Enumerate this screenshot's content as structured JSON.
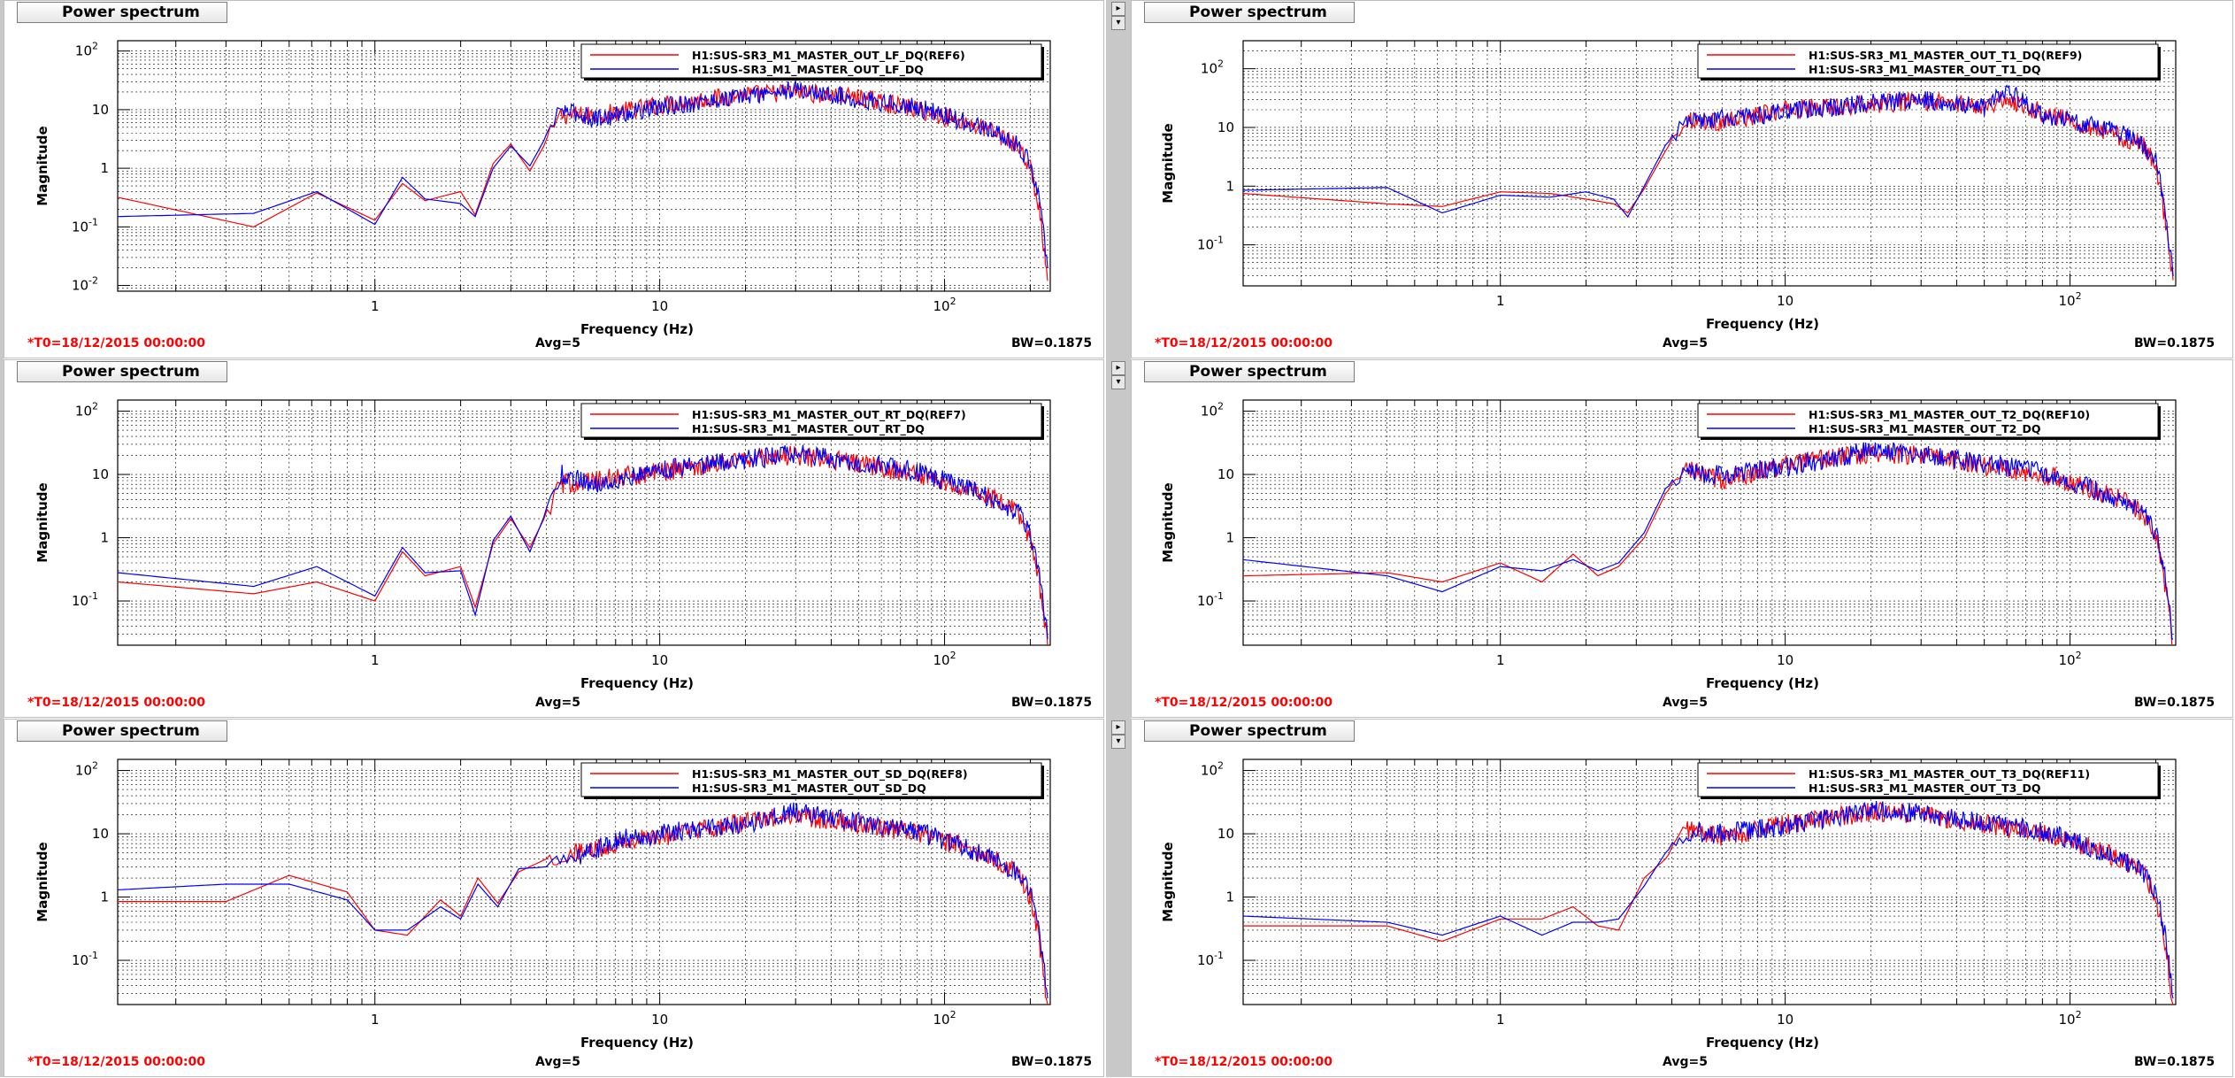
{
  "panels": [
    {
      "title": "Power spectrum",
      "ylabel": "Magnitude",
      "xlabel": "Frequency (Hz)",
      "ymin_exp": -2,
      "ymax_exp": 2,
      "yticks": [
        {
          "mant": "10",
          "exp": "2",
          "v": 100
        },
        {
          "mant": "10",
          "exp": "",
          "v": 10
        },
        {
          "mant": "1",
          "exp": "",
          "v": 1
        },
        {
          "mant": "10",
          "exp": "-1",
          "v": 0.1
        },
        {
          "mant": "10",
          "exp": "-2",
          "v": 0.01
        }
      ],
      "legend": [
        "H1:SUS-SR3_M1_MASTER_OUT_LF_DQ(REF6)",
        "H1:SUS-SR3_M1_MASTER_OUT_LF_DQ"
      ],
      "footer": {
        "t0": "*T0=18/12/2015 00:00:00",
        "avg": "Avg=5",
        "bw": "BW=0.1875"
      },
      "chart_data": {
        "type": "line",
        "xlim": [
          0.125,
          235
        ],
        "ylim": [
          0.008,
          150
        ],
        "series": [
          {
            "name": "H1:SUS-SR3_M1_MASTER_OUT_LF_DQ(REF6)",
            "color": "#ff0000",
            "x": [
              0.125,
              0.375,
              0.625,
              1.0,
              1.25,
              1.5,
              2.0,
              2.25,
              2.6,
              3.0,
              3.5,
              4.5,
              6,
              10,
              20,
              30,
              50,
              80,
              120,
              150,
              180,
              200,
              215,
              230
            ],
            "y": [
              0.32,
              0.1,
              0.38,
              0.13,
              0.55,
              0.28,
              0.4,
              0.16,
              1.2,
              2.6,
              0.9,
              8,
              8,
              12,
              18,
              20,
              16,
              10,
              6,
              4,
              2.5,
              1.0,
              0.2,
              0.012
            ]
          },
          {
            "name": "H1:SUS-SR3_M1_MASTER_OUT_LF_DQ",
            "color": "#0000ff",
            "x": [
              0.125,
              0.375,
              0.625,
              1.0,
              1.25,
              1.5,
              2.0,
              2.25,
              2.6,
              3.0,
              3.5,
              4.5,
              6,
              10,
              20,
              30,
              50,
              80,
              120,
              150,
              180,
              200,
              215,
              230
            ],
            "y": [
              0.15,
              0.17,
              0.4,
              0.11,
              0.7,
              0.3,
              0.25,
              0.15,
              1.0,
              2.4,
              1.1,
              10,
              7,
              11,
              17,
              22,
              15,
              11,
              6,
              4,
              2.5,
              1.2,
              0.3,
              0.02
            ]
          }
        ]
      }
    },
    {
      "title": "Power spectrum",
      "ylabel": "Magnitude",
      "xlabel": "Frequency (Hz)",
      "yticks": [
        {
          "mant": "10",
          "exp": "2",
          "v": 100
        },
        {
          "mant": "10",
          "exp": "",
          "v": 10
        },
        {
          "mant": "1",
          "exp": "",
          "v": 1
        },
        {
          "mant": "10",
          "exp": "-1",
          "v": 0.1
        }
      ],
      "legend": [
        "H1:SUS-SR3_M1_MASTER_OUT_T1_DQ(REF9)",
        "H1:SUS-SR3_M1_MASTER_OUT_T1_DQ"
      ],
      "footer": {
        "t0": "*T0=18/12/2015 00:00:00",
        "avg": "Avg=5",
        "bw": "BW=0.1875"
      },
      "chart_data": {
        "type": "line",
        "xlim": [
          0.125,
          235
        ],
        "ylim": [
          0.02,
          300
        ],
        "series": [
          {
            "name": "H1:SUS-SR3_M1_MASTER_OUT_T1_DQ(REF9)",
            "color": "#ff0000",
            "x": [
              0.125,
              0.4,
              0.625,
              1.0,
              1.5,
              2.0,
              2.5,
              2.8,
              3.2,
              3.8,
              4.5,
              6,
              10,
              20,
              30,
              50,
              60,
              80,
              120,
              150,
              180,
              200,
              215,
              230
            ],
            "y": [
              0.75,
              0.5,
              0.45,
              0.8,
              0.75,
              0.6,
              0.5,
              0.35,
              0.9,
              4,
              14,
              12,
              20,
              25,
              28,
              24,
              30,
              18,
              10,
              7,
              5,
              2.5,
              0.3,
              0.025
            ]
          },
          {
            "name": "H1:SUS-SR3_M1_MASTER_OUT_T1_DQ",
            "color": "#0000ff",
            "x": [
              0.125,
              0.4,
              0.625,
              1.0,
              1.5,
              2.0,
              2.5,
              2.8,
              3.2,
              3.8,
              4.5,
              6,
              10,
              20,
              30,
              50,
              60,
              80,
              120,
              150,
              180,
              200,
              215,
              230
            ],
            "y": [
              0.85,
              0.95,
              0.35,
              0.7,
              0.65,
              0.8,
              0.6,
              0.3,
              1.0,
              5,
              12,
              14,
              18,
              26,
              30,
              22,
              45,
              16,
              11,
              8,
              5,
              3,
              0.4,
              0.03
            ]
          }
        ]
      }
    },
    {
      "title": "Power spectrum",
      "ylabel": "Magnitude",
      "xlabel": "Frequency (Hz)",
      "yticks": [
        {
          "mant": "10",
          "exp": "2",
          "v": 100
        },
        {
          "mant": "10",
          "exp": "",
          "v": 10
        },
        {
          "mant": "1",
          "exp": "",
          "v": 1
        },
        {
          "mant": "10",
          "exp": "-1",
          "v": 0.1
        }
      ],
      "legend": [
        "H1:SUS-SR3_M1_MASTER_OUT_RT_DQ(REF7)",
        "H1:SUS-SR3_M1_MASTER_OUT_RT_DQ"
      ],
      "footer": {
        "t0": "*T0=18/12/2015 00:00:00",
        "avg": "Avg=5",
        "bw": "BW=0.1875"
      },
      "chart_data": {
        "type": "line",
        "xlim": [
          0.125,
          235
        ],
        "ylim": [
          0.02,
          150
        ],
        "series": [
          {
            "name": "H1:SUS-SR3_M1_MASTER_OUT_RT_DQ(REF7)",
            "color": "#ff0000",
            "x": [
              0.125,
              0.375,
              0.625,
              1.0,
              1.25,
              1.5,
              2.0,
              2.25,
              2.6,
              3.0,
              3.5,
              4.5,
              6,
              10,
              20,
              30,
              50,
              80,
              120,
              150,
              180,
              200,
              215,
              230
            ],
            "y": [
              0.2,
              0.13,
              0.2,
              0.1,
              0.6,
              0.25,
              0.35,
              0.08,
              0.8,
              2.0,
              0.7,
              7,
              8,
              11,
              18,
              20,
              15,
              10,
              6,
              4,
              2.5,
              1.0,
              0.2,
              0.02
            ]
          },
          {
            "name": "H1:SUS-SR3_M1_MASTER_OUT_RT_DQ",
            "color": "#0000ff",
            "x": [
              0.125,
              0.375,
              0.625,
              1.0,
              1.25,
              1.5,
              2.0,
              2.25,
              2.6,
              3.0,
              3.5,
              4.5,
              6,
              10,
              20,
              30,
              50,
              80,
              120,
              150,
              180,
              200,
              215,
              230
            ],
            "y": [
              0.28,
              0.17,
              0.35,
              0.12,
              0.7,
              0.28,
              0.3,
              0.06,
              0.9,
              2.2,
              0.6,
              10,
              7,
              12,
              17,
              21,
              16,
              11,
              6,
              4,
              2.5,
              1.2,
              0.3,
              0.025
            ]
          }
        ]
      }
    },
    {
      "title": "Power spectrum",
      "ylabel": "Magnitude",
      "xlabel": "Frequency (Hz)",
      "yticks": [
        {
          "mant": "10",
          "exp": "2",
          "v": 100
        },
        {
          "mant": "10",
          "exp": "",
          "v": 10
        },
        {
          "mant": "1",
          "exp": "",
          "v": 1
        },
        {
          "mant": "10",
          "exp": "-1",
          "v": 0.1
        }
      ],
      "legend": [
        "H1:SUS-SR3_M1_MASTER_OUT_T2_DQ(REF10)",
        "H1:SUS-SR3_M1_MASTER_OUT_T2_DQ"
      ],
      "footer": {
        "t0": "*T0=18/12/2015 00:00:00",
        "avg": "Avg=5",
        "bw": "BW=0.1875"
      },
      "chart_data": {
        "type": "line",
        "xlim": [
          0.125,
          235
        ],
        "ylim": [
          0.02,
          150
        ],
        "series": [
          {
            "name": "H1:SUS-SR3_M1_MASTER_OUT_T2_DQ(REF10)",
            "color": "#ff0000",
            "x": [
              0.125,
              0.4,
              0.625,
              1.0,
              1.4,
              1.8,
              2.2,
              2.6,
              3.2,
              3.8,
              4.5,
              6,
              10,
              20,
              30,
              50,
              80,
              120,
              150,
              180,
              200,
              215,
              230
            ],
            "y": [
              0.25,
              0.28,
              0.2,
              0.4,
              0.2,
              0.55,
              0.25,
              0.35,
              1.0,
              5,
              12,
              8,
              14,
              22,
              20,
              14,
              10,
              6,
              4,
              2.5,
              1.0,
              0.2,
              0.02
            ]
          },
          {
            "name": "H1:SUS-SR3_M1_MASTER_OUT_T2_DQ",
            "color": "#0000ff",
            "x": [
              0.125,
              0.4,
              0.625,
              1.0,
              1.4,
              1.8,
              2.2,
              2.6,
              3.2,
              3.8,
              4.5,
              6,
              10,
              20,
              30,
              50,
              80,
              120,
              150,
              180,
              200,
              215,
              230
            ],
            "y": [
              0.45,
              0.25,
              0.14,
              0.35,
              0.3,
              0.45,
              0.3,
              0.4,
              1.2,
              6,
              11,
              10,
              13,
              24,
              21,
              15,
              11,
              6,
              4,
              2.5,
              1.2,
              0.3,
              0.025
            ]
          }
        ]
      }
    },
    {
      "title": "Power spectrum",
      "ylabel": "Magnitude",
      "xlabel": "Frequency (Hz)",
      "yticks": [
        {
          "mant": "10",
          "exp": "2",
          "v": 100
        },
        {
          "mant": "10",
          "exp": "",
          "v": 10
        },
        {
          "mant": "1",
          "exp": "",
          "v": 1
        },
        {
          "mant": "10",
          "exp": "-1",
          "v": 0.1
        }
      ],
      "legend": [
        "H1:SUS-SR3_M1_MASTER_OUT_SD_DQ(REF8)",
        "H1:SUS-SR3_M1_MASTER_OUT_SD_DQ"
      ],
      "footer": {
        "t0": "*T0=18/12/2015 00:00:00",
        "avg": "Avg=5",
        "bw": "BW=0.1875"
      },
      "chart_data": {
        "type": "line",
        "xlim": [
          0.125,
          235
        ],
        "ylim": [
          0.02,
          150
        ],
        "series": [
          {
            "name": "H1:SUS-SR3_M1_MASTER_OUT_SD_DQ(REF8)",
            "color": "#ff0000",
            "x": [
              0.125,
              0.3,
              0.5,
              0.8,
              1.0,
              1.3,
              1.7,
              2.0,
              2.3,
              2.7,
              3.2,
              4,
              5,
              7,
              10,
              20,
              30,
              50,
              80,
              120,
              150,
              180,
              200,
              215,
              230
            ],
            "y": [
              0.85,
              0.85,
              2.2,
              1.2,
              0.3,
              0.25,
              0.9,
              0.5,
              2.0,
              0.8,
              2.5,
              4,
              5,
              7,
              9,
              15,
              20,
              14,
              10,
              6,
              4,
              2.5,
              1.0,
              0.2,
              0.02
            ]
          },
          {
            "name": "H1:SUS-SR3_M1_MASTER_OUT_SD_DQ",
            "color": "#0000ff",
            "x": [
              0.125,
              0.3,
              0.5,
              0.8,
              1.0,
              1.3,
              1.7,
              2.0,
              2.3,
              2.7,
              3.2,
              4,
              5,
              7,
              10,
              20,
              30,
              50,
              80,
              120,
              150,
              180,
              200,
              215,
              230
            ],
            "y": [
              1.3,
              1.6,
              1.6,
              0.9,
              0.3,
              0.3,
              0.7,
              0.45,
              1.6,
              0.7,
              2.8,
              3,
              4,
              8,
              10,
              14,
              22,
              15,
              11,
              6,
              4,
              2.5,
              1.2,
              0.3,
              0.025
            ]
          }
        ]
      }
    },
    {
      "title": "Power spectrum",
      "ylabel": "Magnitude",
      "xlabel": "Frequency (Hz)",
      "yticks": [
        {
          "mant": "10",
          "exp": "2",
          "v": 100
        },
        {
          "mant": "10",
          "exp": "",
          "v": 10
        },
        {
          "mant": "1",
          "exp": "",
          "v": 1
        },
        {
          "mant": "10",
          "exp": "-1",
          "v": 0.1
        }
      ],
      "legend": [
        "H1:SUS-SR3_M1_MASTER_OUT_T3_DQ(REF11)",
        "H1:SUS-SR3_M1_MASTER_OUT_T3_DQ"
      ],
      "footer": {
        "t0": "*T0=18/12/2015 00:00:00",
        "avg": "Avg=5",
        "bw": "BW=0.1875"
      },
      "chart_data": {
        "type": "line",
        "xlim": [
          0.125,
          235
        ],
        "ylim": [
          0.02,
          150
        ],
        "series": [
          {
            "name": "H1:SUS-SR3_M1_MASTER_OUT_T3_DQ(REF11)",
            "color": "#ff0000",
            "x": [
              0.125,
              0.4,
              0.625,
              1.0,
              1.4,
              1.8,
              2.2,
              2.6,
              3.2,
              3.8,
              4.5,
              6,
              10,
              20,
              30,
              50,
              80,
              120,
              150,
              180,
              200,
              215,
              230
            ],
            "y": [
              0.35,
              0.35,
              0.2,
              0.45,
              0.45,
              0.7,
              0.35,
              0.3,
              2.0,
              4,
              12,
              9,
              14,
              22,
              20,
              14,
              10,
              6,
              4,
              2.5,
              1.0,
              0.2,
              0.02
            ]
          },
          {
            "name": "H1:SUS-SR3_M1_MASTER_OUT_T3_DQ",
            "color": "#0000ff",
            "x": [
              0.125,
              0.4,
              0.625,
              1.0,
              1.4,
              1.8,
              2.2,
              2.6,
              3.2,
              3.8,
              4.5,
              6,
              10,
              20,
              30,
              50,
              80,
              120,
              150,
              180,
              200,
              215,
              230
            ],
            "y": [
              0.5,
              0.4,
              0.25,
              0.5,
              0.25,
              0.4,
              0.4,
              0.45,
              1.5,
              5,
              11,
              10,
              13,
              23,
              21,
              15,
              11,
              6,
              4,
              2.5,
              1.2,
              0.3,
              0.025
            ]
          }
        ]
      }
    }
  ],
  "chart_data": [
    {
      "type": "line",
      "ref": "panels.0.chart_data"
    },
    {
      "type": "line",
      "ref": "panels.1.chart_data"
    },
    {
      "type": "line",
      "ref": "panels.2.chart_data"
    },
    {
      "type": "line",
      "ref": "panels.3.chart_data"
    },
    {
      "type": "line",
      "ref": "panels.4.chart_data"
    },
    {
      "type": "line",
      "ref": "panels.5.chart_data"
    }
  ],
  "xticks": [
    {
      "v": 1,
      "mant": "1",
      "exp": ""
    },
    {
      "v": 10,
      "mant": "10",
      "exp": ""
    },
    {
      "v": 100,
      "mant": "10",
      "exp": "2"
    }
  ],
  "scroll_glyphs": {
    "right": "▸",
    "down": "▾"
  }
}
